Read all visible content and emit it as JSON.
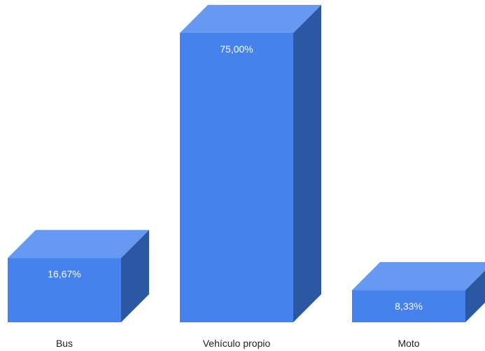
{
  "chart_data": {
    "type": "bar",
    "style": "3d",
    "categories": [
      "Bus",
      "Vehículo propio",
      "Moto"
    ],
    "values": [
      16.67,
      75.0,
      8.33
    ],
    "data_labels": [
      "16,67%",
      "75,00%",
      "8,33%"
    ],
    "unit": "%",
    "ylim": [
      0,
      75
    ],
    "grid": false,
    "legend": "none",
    "colors": {
      "front": "#4582ED",
      "top": "#6699F2",
      "side": "#2C58A3"
    }
  }
}
